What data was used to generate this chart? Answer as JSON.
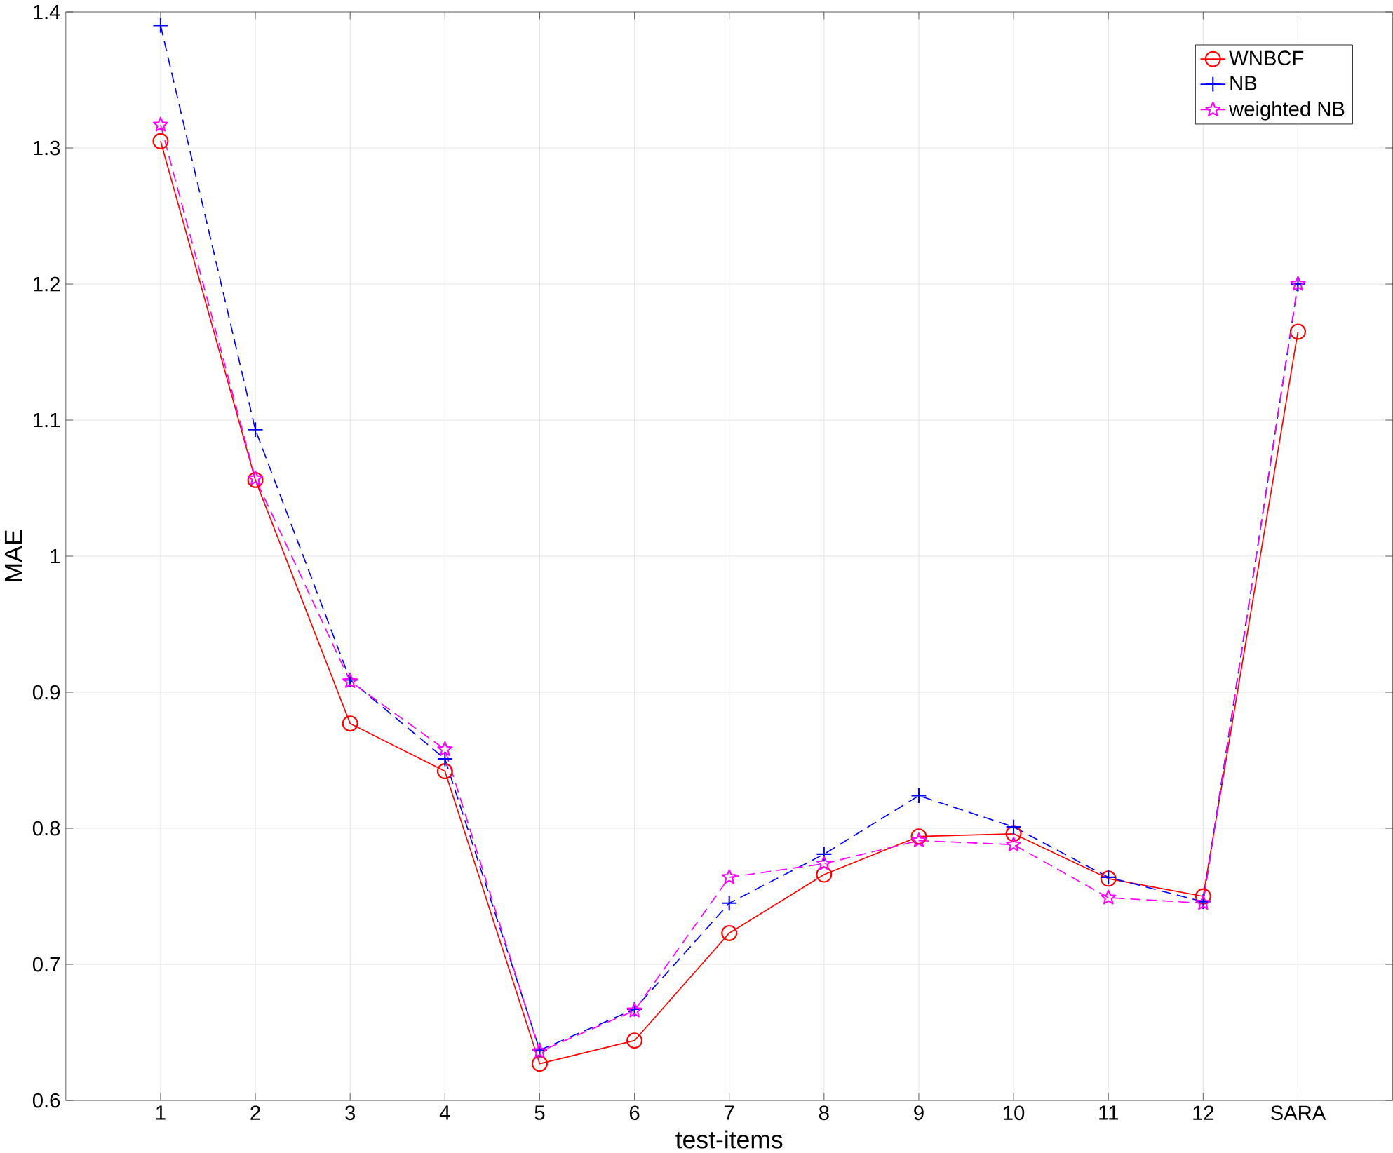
{
  "chart_data": {
    "type": "line",
    "xlabel": "test-items",
    "ylabel": "MAE",
    "categories": [
      "1",
      "2",
      "3",
      "4",
      "5",
      "6",
      "7",
      "8",
      "9",
      "10",
      "11",
      "12",
      "SARA"
    ],
    "series": [
      {
        "name": "WNBCF",
        "color": "#ff0000",
        "marker": "circle",
        "line_style": "solid",
        "values": [
          1.305,
          1.056,
          0.877,
          0.842,
          0.627,
          0.644,
          0.723,
          0.766,
          0.794,
          0.796,
          0.763,
          0.75,
          1.165
        ]
      },
      {
        "name": "NB",
        "color": "#0000ff",
        "marker": "cross",
        "line_style": "dashed",
        "values": [
          1.39,
          1.093,
          0.909,
          0.851,
          0.637,
          0.667,
          0.745,
          0.781,
          0.824,
          0.801,
          0.764,
          0.746,
          1.2
        ]
      },
      {
        "name": "weighted NB",
        "color": "#ff00ff",
        "marker": "star",
        "line_style": "dashed",
        "values": [
          1.317,
          1.057,
          0.908,
          0.858,
          0.636,
          0.666,
          0.764,
          0.774,
          0.791,
          0.788,
          0.749,
          0.745,
          1.2
        ]
      }
    ],
    "ylim": [
      0.6,
      1.4
    ],
    "yticks": [
      0.6,
      0.7,
      0.8,
      0.9,
      1,
      1.1,
      1.2,
      1.3,
      1.4
    ],
    "grid": true,
    "legend": "top right"
  }
}
